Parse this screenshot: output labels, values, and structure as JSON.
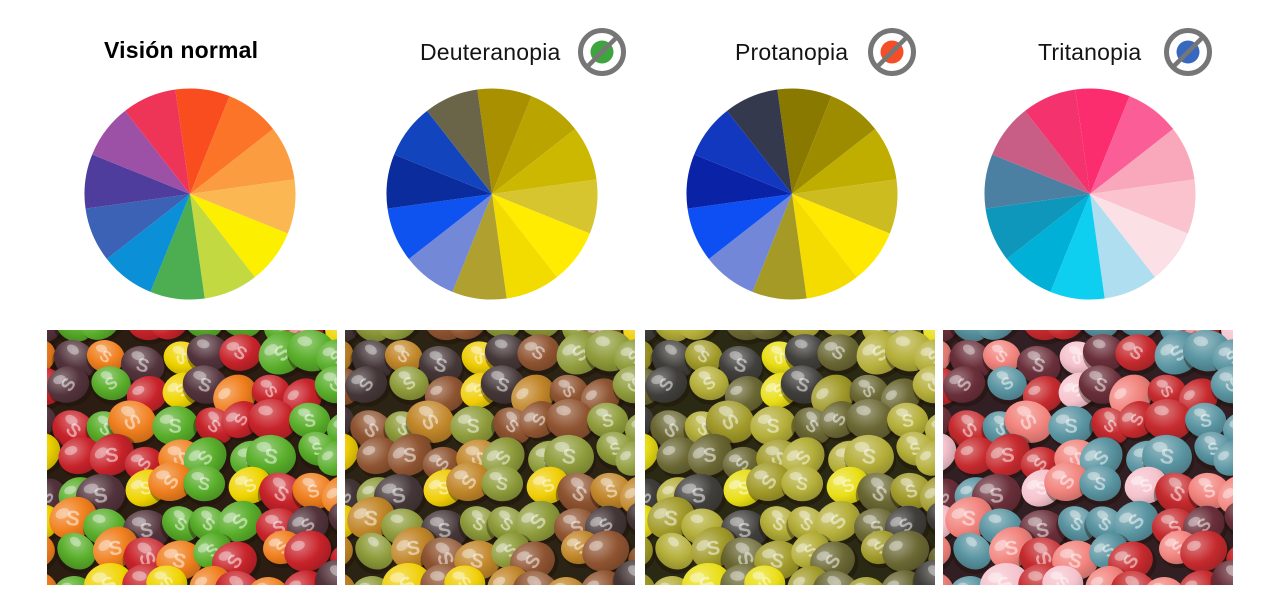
{
  "infographic": {
    "background": "#ffffff",
    "candy_letter": "S",
    "icon_ring_color": "#767676",
    "panels": [
      {
        "label": "Visión normal",
        "icon": null,
        "wheel_colors": [
          "#F94D20",
          "#FB7428",
          "#FB9C41",
          "#FBB751",
          "#FCEF00",
          "#C3D941",
          "#4CAE50",
          "#0B8FD7",
          "#3B62B4",
          "#4F3D9E",
          "#9C50A6",
          "#EE3558"
        ],
        "candy_palette": [
          "#C8232A",
          "#F07F1E",
          "#EFD400",
          "#59AE2A",
          "#53333C"
        ]
      },
      {
        "label": "Deuteranopia",
        "icon": {
          "name": "no-green-vision-icon",
          "dot_color": "#3EA43E"
        },
        "wheel_colors": [
          "#A89000",
          "#B9A400",
          "#CCB800",
          "#D6C52E",
          "#FFEC00",
          "#F2DC00",
          "#AFA02F",
          "#7488D8",
          "#0E52F0",
          "#0A2C9C",
          "#1244BE",
          "#6A6548"
        ],
        "candy_palette": [
          "#8F5431",
          "#C18629",
          "#F0CE06",
          "#8F9C3B",
          "#453738"
        ]
      },
      {
        "label": "Protanopia",
        "icon": {
          "name": "no-red-vision-icon",
          "dot_color": "#F34E27"
        },
        "wheel_colors": [
          "#8A7900",
          "#9D8C00",
          "#BFAD00",
          "#CDBC20",
          "#FFE900",
          "#F5DC00",
          "#A49A25",
          "#7287D7",
          "#0D4FF2",
          "#0A23A6",
          "#1138BF",
          "#35394E"
        ],
        "candy_palette": [
          "#6B6834",
          "#A29B2A",
          "#E9DE15",
          "#B5AF3A",
          "#403F3B"
        ]
      },
      {
        "label": "Tritanopia",
        "icon": {
          "name": "no-blue-vision-icon",
          "dot_color": "#3768C0"
        },
        "wheel_colors": [
          "#FB2D6F",
          "#FB5E97",
          "#F9A8BC",
          "#FBC3CE",
          "#FBE0E5",
          "#AEDEEF",
          "#0FCFF0",
          "#00B0D6",
          "#0E97BB",
          "#4B80A2",
          "#C85E85",
          "#F4336E"
        ],
        "candy_palette": [
          "#C62A2E",
          "#F2837D",
          "#F6C3CD",
          "#5A95A2",
          "#6A2F3A"
        ]
      }
    ]
  }
}
